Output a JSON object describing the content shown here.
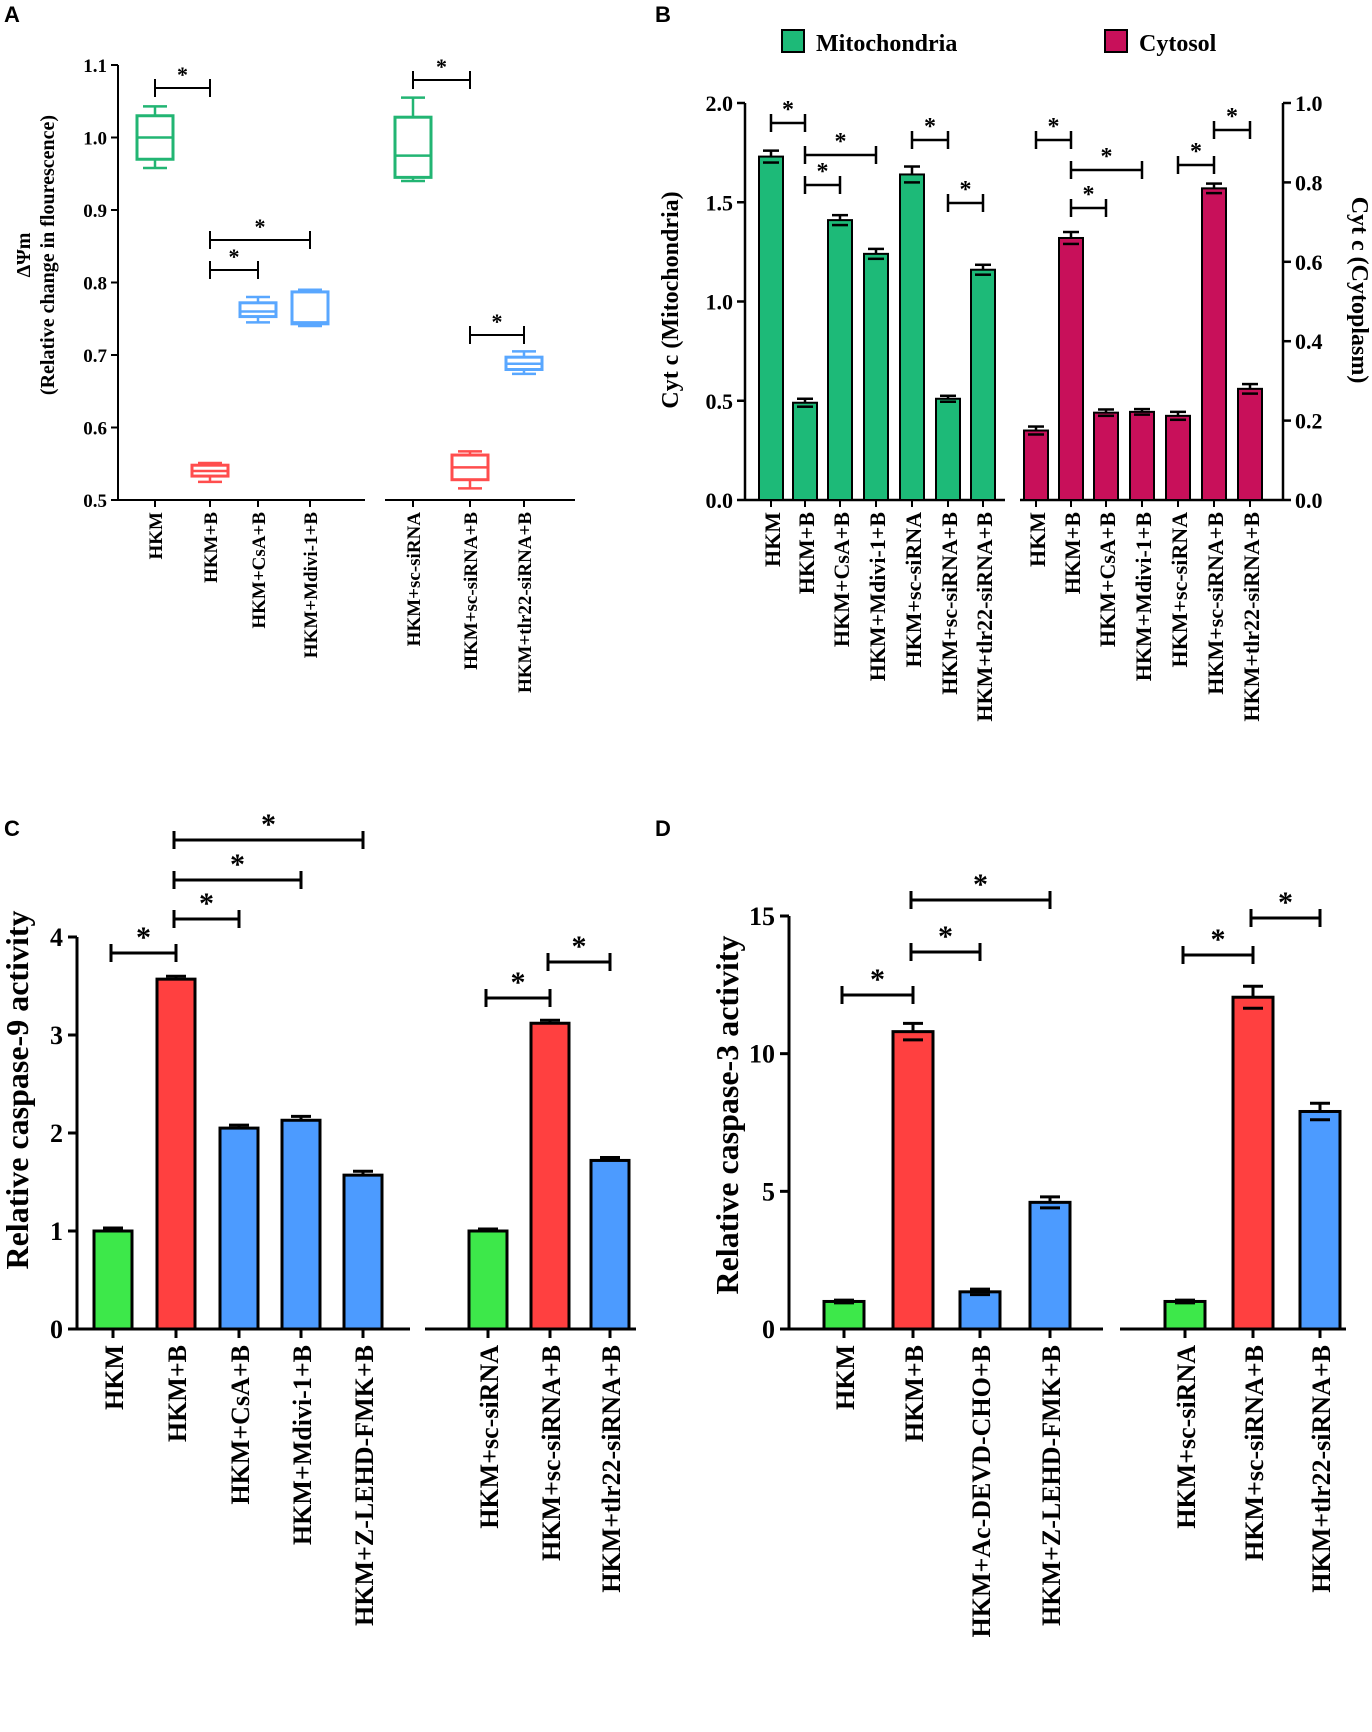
{
  "colors": {
    "green": "#1dba78",
    "green_light": "#3de84a",
    "red": "#ff4040",
    "blue": "#4c9bff",
    "crimson": "#c8105a",
    "box_green": "#22b573",
    "box_blue": "#59a7ff",
    "box_red": "#ff4d4d"
  },
  "chart_data": [
    {
      "panel": "A",
      "type": "box",
      "ylabel_line1": "ΔΨm",
      "ylabel_line2": "(Relative change in flourescence)",
      "ylim": [
        0.5,
        1.1
      ],
      "yticks": [
        "0.5",
        "0.6",
        "0.7",
        "0.8",
        "0.9",
        "1.0",
        "1.1"
      ],
      "categories": [
        "HKM",
        "HKM+B",
        "HKM+CsA+B",
        "HKM+Mdivi-1+B",
        "HKM+sc-siRNA",
        "HKM+sc-siRNA+B",
        "HKM+tlr22-siRNA+B"
      ],
      "boxes": [
        {
          "min": 0.958,
          "q1": 0.97,
          "median": 1.0,
          "q3": 1.03,
          "max": 1.043,
          "color": "green"
        },
        {
          "min": 0.525,
          "q1": 0.533,
          "median": 0.54,
          "q3": 0.548,
          "max": 0.551,
          "color": "red"
        },
        {
          "min": 0.745,
          "q1": 0.753,
          "median": 0.76,
          "q3": 0.772,
          "max": 0.78,
          "color": "blue"
        },
        {
          "min": 0.74,
          "q1": 0.743,
          "median": 0.745,
          "q3": 0.787,
          "max": 0.79,
          "color": "blue"
        },
        {
          "min": 0.94,
          "q1": 0.945,
          "median": 0.975,
          "q3": 1.028,
          "max": 1.055,
          "color": "green"
        },
        {
          "min": 0.516,
          "q1": 0.528,
          "median": 0.545,
          "q3": 0.562,
          "max": 0.567,
          "color": "red"
        },
        {
          "min": 0.674,
          "q1": 0.68,
          "median": 0.688,
          "q3": 0.697,
          "max": 0.705,
          "color": "blue"
        }
      ],
      "significance": [
        {
          "from": 0,
          "to": 1,
          "label": "*"
        },
        {
          "from": 1,
          "to": 2,
          "label": "*"
        },
        {
          "from": 1,
          "to": 3,
          "label": "*"
        },
        {
          "from": 4,
          "to": 5,
          "label": "*"
        },
        {
          "from": 5,
          "to": 6,
          "label": "*"
        }
      ]
    },
    {
      "panel": "B",
      "type": "bar",
      "legend": [
        "Mitochondria",
        "Cytosol"
      ],
      "ylabel_left": "Cyt c (Mitochondria)",
      "ylabel_right": "Cyt c (Cytoplasm)",
      "ylim_left": [
        0,
        2.0
      ],
      "ylim_right": [
        0,
        1.0
      ],
      "yticks_left": [
        "0.0",
        "0.5",
        "1.0",
        "1.5",
        "2.0"
      ],
      "yticks_right": [
        "0.0",
        "0.2",
        "0.4",
        "0.6",
        "0.8",
        "1.0"
      ],
      "categories": [
        "HKM",
        "HKM+B",
        "HKM+CsA+B",
        "HKM+Mdivi-1+B",
        "HKM+sc-siRNA",
        "HKM+sc-siRNA+B",
        "HKM+tlr22-siRNA+B"
      ],
      "series": [
        {
          "name": "Mitochondria",
          "axis": "left",
          "values": [
            1.73,
            0.49,
            1.41,
            1.24,
            1.64,
            0.51,
            1.16
          ],
          "errors": [
            0.03,
            0.02,
            0.025,
            0.025,
            0.04,
            0.015,
            0.025
          ]
        },
        {
          "name": "Cytosol",
          "axis": "right",
          "values": [
            0.175,
            0.66,
            0.22,
            0.222,
            0.212,
            0.785,
            0.28
          ],
          "errors": [
            0.01,
            0.015,
            0.008,
            0.007,
            0.01,
            0.012,
            0.012
          ]
        }
      ],
      "significance": [
        {
          "series": 0,
          "from": 0,
          "to": 1,
          "label": "*"
        },
        {
          "series": 0,
          "from": 1,
          "to": 3,
          "label": "*"
        },
        {
          "series": 0,
          "from": 1,
          "to": 2,
          "label": "*"
        },
        {
          "series": 0,
          "from": 4,
          "to": 5,
          "label": "*"
        },
        {
          "series": 0,
          "from": 5,
          "to": 6,
          "label": "*"
        },
        {
          "series": 1,
          "from": 0,
          "to": 1,
          "label": "*"
        },
        {
          "series": 1,
          "from": 1,
          "to": 3,
          "label": "*"
        },
        {
          "series": 1,
          "from": 1,
          "to": 2,
          "label": "*"
        },
        {
          "series": 1,
          "from": 4,
          "to": 5,
          "label": "*"
        },
        {
          "series": 1,
          "from": 5,
          "to": 6,
          "label": "*"
        }
      ]
    },
    {
      "panel": "C",
      "type": "bar",
      "ylabel": "Relative caspase-9 activity",
      "ylim": [
        0,
        4
      ],
      "yticks": [
        "0",
        "1",
        "2",
        "3",
        "4"
      ],
      "categories": [
        "HKM",
        "HKM+B",
        "HKM+CsA+B",
        "HKM+Mdivi-1+B",
        "HKM+Z-LEHD-FMK+B",
        "HKM+sc-siRNA",
        "HKM+sc-siRNA+B",
        "HKM+tlr22-siRNA+B"
      ],
      "values": [
        1.0,
        3.57,
        2.05,
        2.13,
        1.57,
        1.0,
        3.12,
        1.72
      ],
      "errors": [
        0.03,
        0.03,
        0.03,
        0.04,
        0.04,
        0.02,
        0.03,
        0.03
      ],
      "colors": [
        "green_light",
        "red",
        "blue",
        "blue",
        "blue",
        "green_light",
        "red",
        "blue"
      ],
      "significance": [
        {
          "from": 0,
          "to": 1,
          "label": "*"
        },
        {
          "from": 1,
          "to": 2,
          "label": "*"
        },
        {
          "from": 1,
          "to": 3,
          "label": "*"
        },
        {
          "from": 1,
          "to": 4,
          "label": "*"
        },
        {
          "from": 5,
          "to": 6,
          "label": "*"
        },
        {
          "from": 6,
          "to": 7,
          "label": "*"
        }
      ]
    },
    {
      "panel": "D",
      "type": "bar",
      "ylabel": "Relative caspase-3 activity",
      "ylim": [
        0,
        15
      ],
      "yticks": [
        "0",
        "5",
        "10",
        "15"
      ],
      "categories": [
        "HKM",
        "HKM+B",
        "HKM+Ac-DEVD-CHO+B",
        "HKM+Z-LEHD-FMK+B",
        "HKM+sc-siRNA",
        "HKM+sc-siRNA+B",
        "HKM+tlr22-siRNA+B"
      ],
      "values": [
        1.0,
        10.8,
        1.35,
        4.6,
        1.0,
        12.05,
        7.9
      ],
      "errors": [
        0.05,
        0.3,
        0.1,
        0.2,
        0.05,
        0.4,
        0.3
      ],
      "colors": [
        "green_light",
        "red",
        "blue",
        "blue",
        "green_light",
        "red",
        "blue"
      ],
      "significance": [
        {
          "from": 0,
          "to": 1,
          "label": "*"
        },
        {
          "from": 1,
          "to": 2,
          "label": "*"
        },
        {
          "from": 1,
          "to": 3,
          "label": "*"
        },
        {
          "from": 4,
          "to": 5,
          "label": "*"
        },
        {
          "from": 5,
          "to": 6,
          "label": "*"
        }
      ]
    }
  ]
}
